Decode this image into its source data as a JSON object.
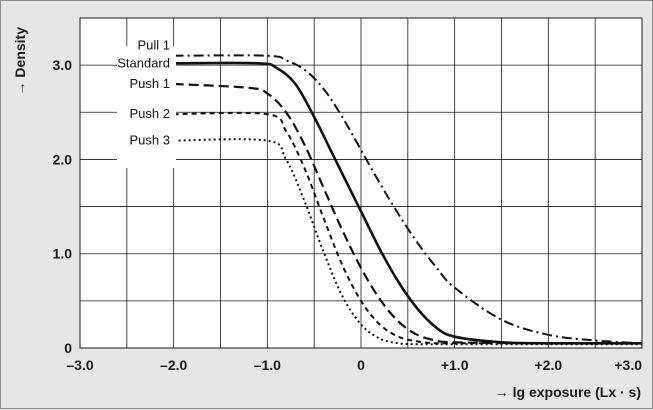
{
  "chart_data": {
    "type": "line",
    "xlabel": "→ lg exposure (Lx · s)",
    "ylabel": "→ Density",
    "xlim": [
      -3.0,
      3.0
    ],
    "ylim": [
      0,
      3.5
    ],
    "x_ticks": [
      {
        "value": -3.0,
        "label": "–3.0"
      },
      {
        "value": -2.0,
        "label": "–2.0"
      },
      {
        "value": -1.0,
        "label": "–1.0"
      },
      {
        "value": 0,
        "label": "0"
      },
      {
        "value": 1.0,
        "label": "+1.0"
      },
      {
        "value": 2.0,
        "label": "+2.0"
      },
      {
        "value": 3.0,
        "label": "+3.0"
      }
    ],
    "y_ticks": [
      {
        "value": 0,
        "label": "0"
      },
      {
        "value": 1.0,
        "label": "1.0"
      },
      {
        "value": 2.0,
        "label": "2.0"
      },
      {
        "value": 3.0,
        "label": "3.0"
      }
    ],
    "grid": true,
    "legend_position": "top-left (labels beside curve starts)",
    "series": [
      {
        "name": "Pull 1",
        "style": "dashdot",
        "x": [
          -2.0,
          -1.0,
          -0.8,
          -0.6,
          -0.4,
          -0.2,
          0,
          0.2,
          0.4,
          0.6,
          0.8,
          1.0,
          1.5,
          2.0,
          2.5,
          3.0
        ],
        "y": [
          3.1,
          3.1,
          3.05,
          2.95,
          2.75,
          2.45,
          2.1,
          1.75,
          1.42,
          1.12,
          0.86,
          0.64,
          0.3,
          0.14,
          0.08,
          0.05
        ]
      },
      {
        "name": "Standard",
        "style": "solid",
        "x": [
          -2.0,
          -1.1,
          -0.9,
          -0.7,
          -0.5,
          -0.3,
          -0.1,
          0,
          0.2,
          0.4,
          0.6,
          0.8,
          1.0,
          1.5,
          2.0,
          3.0
        ],
        "y": [
          3.02,
          3.02,
          2.97,
          2.8,
          2.45,
          2.05,
          1.65,
          1.45,
          1.05,
          0.7,
          0.42,
          0.22,
          0.12,
          0.06,
          0.05,
          0.05
        ]
      },
      {
        "name": "Push 1",
        "style": "dashed",
        "x": [
          -2.0,
          -1.2,
          -1.0,
          -0.8,
          -0.6,
          -0.4,
          -0.2,
          0,
          0.2,
          0.4,
          0.6,
          0.8,
          1.0,
          2.0,
          3.0
        ],
        "y": [
          2.8,
          2.76,
          2.7,
          2.5,
          2.15,
          1.7,
          1.25,
          0.85,
          0.52,
          0.28,
          0.14,
          0.08,
          0.06,
          0.05,
          0.05
        ]
      },
      {
        "name": "Push 2",
        "style": "short-dash",
        "x": [
          -2.0,
          -1.0,
          -0.8,
          -0.6,
          -0.4,
          -0.2,
          0,
          0.2,
          0.4,
          0.6,
          0.8,
          1.0,
          2.0,
          3.0
        ],
        "y": [
          2.48,
          2.48,
          2.3,
          1.9,
          1.38,
          0.88,
          0.5,
          0.25,
          0.12,
          0.07,
          0.05,
          0.05,
          0.05,
          0.05
        ]
      },
      {
        "name": "Push 3",
        "style": "dotted",
        "x": [
          -2.0,
          -1.0,
          -0.8,
          -0.6,
          -0.4,
          -0.2,
          0,
          0.2,
          0.4,
          0.6,
          0.8,
          1.0,
          2.0,
          3.0
        ],
        "y": [
          2.2,
          2.2,
          2.0,
          1.55,
          1.02,
          0.55,
          0.25,
          0.1,
          0.05,
          0.04,
          0.04,
          0.04,
          0.04,
          0.04
        ]
      }
    ]
  }
}
